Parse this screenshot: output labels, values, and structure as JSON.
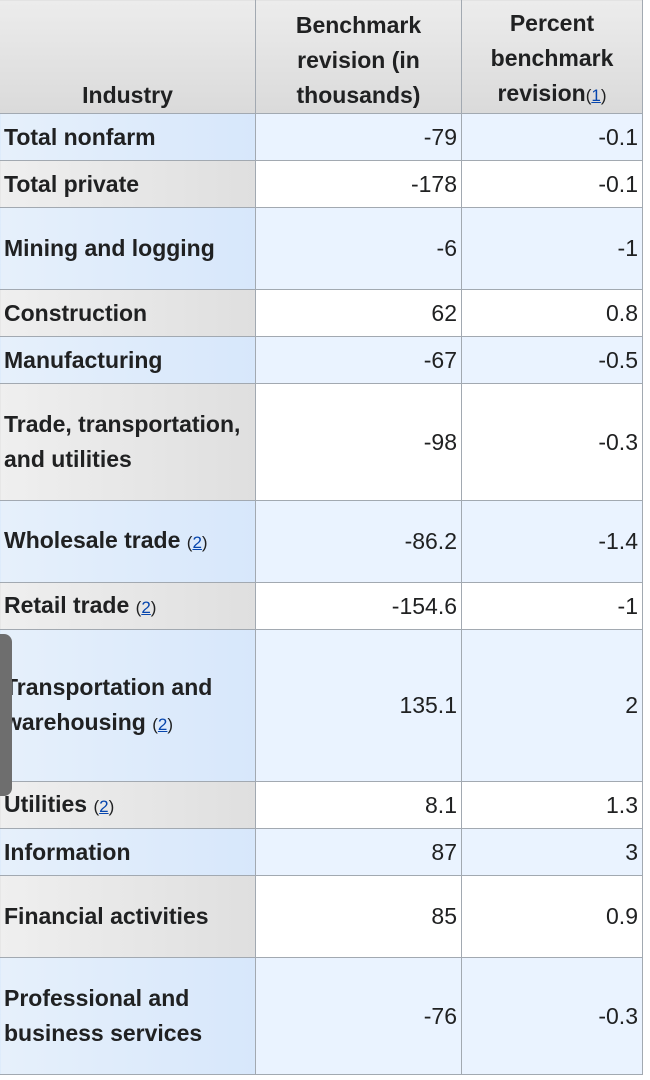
{
  "table": {
    "headers": {
      "industry": "Industry",
      "revision": "Benchmark revision (in thousands)",
      "percent": "Percent benchmark revision",
      "percent_ref": "1"
    },
    "rows": [
      {
        "industry": "Total nonfarm",
        "ref": "",
        "revision": "-79",
        "percent": "-0.1"
      },
      {
        "industry": "Total private",
        "ref": "",
        "revision": "-178",
        "percent": "-0.1"
      },
      {
        "industry": "Mining and logging",
        "ref": "",
        "revision": "-6",
        "percent": "-1"
      },
      {
        "industry": "Construction",
        "ref": "",
        "revision": "62",
        "percent": "0.8"
      },
      {
        "industry": "Manufacturing",
        "ref": "",
        "revision": "-67",
        "percent": "-0.5"
      },
      {
        "industry": "Trade, transportation, and utilities",
        "ref": "",
        "revision": "-98",
        "percent": "-0.3"
      },
      {
        "industry": "Wholesale trade",
        "ref": "2",
        "revision": "-86.2",
        "percent": "-1.4"
      },
      {
        "industry": "Retail trade",
        "ref": "2",
        "revision": "-154.6",
        "percent": "-1"
      },
      {
        "industry": "Transportation and warehousing",
        "ref": "2",
        "revision": "135.1",
        "percent": "2"
      },
      {
        "industry": "Utilities",
        "ref": "2",
        "revision": "8.1",
        "percent": "1.3"
      },
      {
        "industry": "Information",
        "ref": "",
        "revision": "87",
        "percent": "3"
      },
      {
        "industry": "Financial activities",
        "ref": "",
        "revision": "85",
        "percent": "0.9"
      },
      {
        "industry": "Professional and business services",
        "ref": "",
        "revision": "-76",
        "percent": "-0.3"
      }
    ]
  }
}
